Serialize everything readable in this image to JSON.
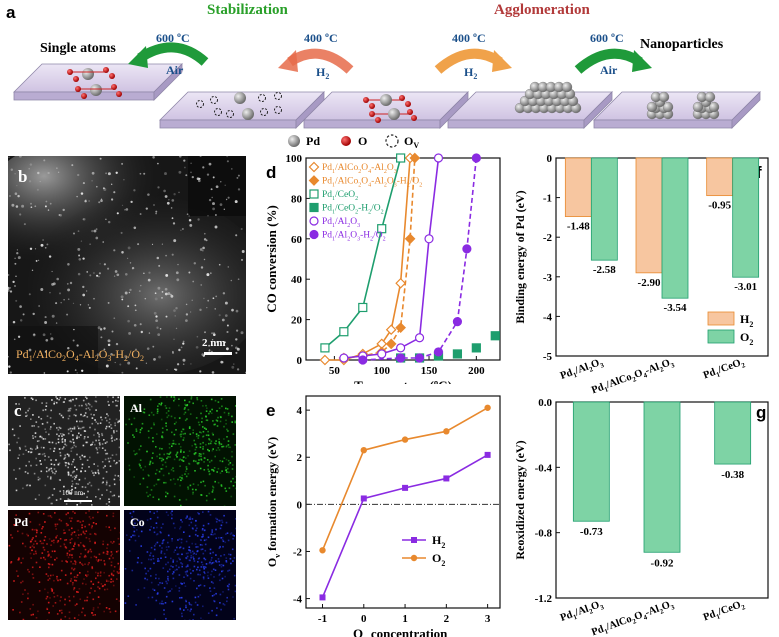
{
  "colors": {
    "orange": "#E8892E",
    "orange_fill": "#F7C6A0",
    "green": "#1E9E6E",
    "green_fill": "#7ED3A5",
    "purple": "#8A2BE2",
    "red_arrow": "#E66B4A",
    "green_arrow": "#1F9A3A",
    "stab_text": "#2AA02A",
    "aggl_text": "#B23A3A",
    "pd_sphere": "#8C8C8C",
    "o_sphere": "#CC1111"
  },
  "panel_a": {
    "label": "a",
    "stabilization": "Stabilization",
    "agglomeration": "Agglomeration",
    "single_atoms": "Single atoms",
    "nanoparticles": "Nanoparticles",
    "step1_temp": "600 ºC",
    "step1_gas": "Air",
    "step2_temp": "400 ºC",
    "step2_gas": "H",
    "step3_temp": "400 ºC",
    "step3_gas": "H",
    "step4_temp": "600 ºC",
    "step4_gas": "Air",
    "sub2": "2",
    "legend_pd": "Pd",
    "legend_o": "O",
    "legend_ov": "O",
    "legend_ov_sub": "V"
  },
  "panel_b": {
    "label": "b",
    "scale": "2 nm",
    "caption_pd": "Pd",
    "caption_1": "1",
    "caption_rest": "/AlCo",
    "caption_2a": "2",
    "caption_o": "O",
    "caption_4": "4",
    "caption_al": "-Al",
    "caption_2b": "2",
    "caption_o2": "O",
    "caption_3": "3",
    "caption_h": "-H",
    "caption_2c": "2",
    "caption_slash": "/O",
    "caption_2d": "2"
  },
  "panel_c": {
    "label": "c",
    "al": "Al",
    "pd": "Pd",
    "co": "Co",
    "scale": "100 nm"
  },
  "chart_data": [
    {
      "panel": "d",
      "type": "line",
      "xlabel": "Temperature (ºC)",
      "ylabel": "CO conversion (%)",
      "xlim": [
        20,
        225
      ],
      "ylim": [
        0,
        100
      ],
      "xticks": [
        50,
        100,
        150,
        200
      ],
      "yticks": [
        0,
        20,
        40,
        60,
        80,
        100
      ],
      "legend": [
        "Pd1/AlCo2O4-Al2O3",
        "Pd1/AlCo2O4-Al2O3-H2/O2",
        "Pd1/CeO2",
        "Pd1/CeO2-H2/O2",
        "Pd1/Al2O3",
        "Pd1/Al2O3-H2/O2"
      ],
      "series": [
        {
          "name": "Pd1/AlCo2O4-Al2O3",
          "color": "#E8892E",
          "marker": "diamond-open",
          "dash": false,
          "x": [
            40,
            60,
            80,
            100,
            110,
            120,
            130
          ],
          "y": [
            0,
            0,
            3,
            8,
            15,
            38,
            100
          ]
        },
        {
          "name": "Pd1/AlCo2O4-Al2O3-H2/O2",
          "color": "#E8892E",
          "marker": "diamond-filled",
          "dash": true,
          "x": [
            60,
            80,
            100,
            110,
            120,
            130,
            135
          ],
          "y": [
            1,
            2,
            4,
            8,
            16,
            60,
            100
          ]
        },
        {
          "name": "Pd1/CeO2",
          "color": "#1E9E6E",
          "marker": "square-open",
          "dash": false,
          "x": [
            40,
            60,
            80,
            100,
            120
          ],
          "y": [
            6,
            14,
            26,
            65,
            100
          ]
        },
        {
          "name": "Pd1/CeO2-H2/O2",
          "color": "#1E9E6E",
          "marker": "square-filled",
          "dash": false,
          "x": [
            120,
            140,
            160,
            180,
            200,
            220
          ],
          "y": [
            1,
            1,
            2,
            3,
            6,
            12
          ]
        },
        {
          "name": "Pd1/Al2O3",
          "color": "#8A2BE2",
          "marker": "circle-open",
          "dash": false,
          "x": [
            60,
            80,
            100,
            120,
            140,
            150,
            160
          ],
          "y": [
            1,
            2,
            3,
            6,
            11,
            60,
            100
          ]
        },
        {
          "name": "Pd1/Al2O3-H2/O2",
          "color": "#8A2BE2",
          "marker": "circle-filled",
          "dash": true,
          "x": [
            80,
            120,
            140,
            160,
            180,
            190,
            200
          ],
          "y": [
            0,
            1,
            1,
            4,
            19,
            55,
            100
          ]
        }
      ]
    },
    {
      "panel": "e",
      "type": "line",
      "xlabel": "Ov concentration",
      "ylabel": "Ov formation energy (eV)",
      "xlim": [
        -1.4,
        3.3
      ],
      "ylim": [
        -4.4,
        4.6
      ],
      "xticks": [
        -1,
        0,
        1,
        2,
        3
      ],
      "yticks": [
        -4,
        -2,
        0,
        2,
        4
      ],
      "reference_line_y": 0,
      "series": [
        {
          "name": "H2",
          "color": "#8A2BE2",
          "marker": "square",
          "x": [
            -1,
            0,
            1,
            2,
            3
          ],
          "y": [
            -3.95,
            0.25,
            0.7,
            1.1,
            2.1
          ]
        },
        {
          "name": "O2",
          "color": "#E8892E",
          "marker": "circle",
          "x": [
            -1,
            0,
            1,
            2,
            3
          ],
          "y": [
            -1.95,
            2.3,
            2.75,
            3.1,
            4.1
          ]
        }
      ]
    },
    {
      "panel": "f",
      "type": "bar",
      "ylabel": "Binding energy of Pd (eV)",
      "ylim": [
        -5,
        0
      ],
      "yticks": [
        0,
        -1,
        -2,
        -3,
        -4,
        -5
      ],
      "categories": [
        "Pd1/Al2O3",
        "Pd1/AlCo2O4-Al2O3",
        "Pd1/CeO2"
      ],
      "series": [
        {
          "name": "H2",
          "color": "#F7C6A0",
          "values": [
            -1.48,
            -2.9,
            -0.95
          ]
        },
        {
          "name": "O2",
          "color": "#7ED3A5",
          "values": [
            -2.58,
            -3.54,
            -3.01
          ]
        }
      ],
      "labels": {
        "H2": [
          "-1.48",
          "-2.90",
          "-0.95"
        ],
        "O2": [
          "-2.58",
          "-3.54",
          "-3.01"
        ]
      }
    },
    {
      "panel": "g",
      "type": "bar",
      "ylabel": "Reoxidized energy (eV)",
      "ylim": [
        -1.2,
        0
      ],
      "yticks": [
        0.0,
        -0.4,
        -0.8,
        -1.2
      ],
      "ytick_labels": [
        "0.0",
        "-0.4",
        "-0.8",
        "-1.2"
      ],
      "categories": [
        "Pd1/Al2O3",
        "Pd1/AlCo2O4-Al2O3",
        "Pd1/CeO2"
      ],
      "series": [
        {
          "name": "",
          "color": "#7ED3A5",
          "values": [
            -0.73,
            -0.92,
            -0.38
          ]
        }
      ],
      "labels": [
        "-0.73",
        "-0.92",
        "-0.38"
      ]
    }
  ],
  "panel_labels": {
    "d": "d",
    "e": "e",
    "f": "f",
    "g": "g"
  },
  "legend_d_parts": [
    [
      "Pd",
      "1",
      "/AlCo",
      "2",
      "O",
      "4",
      "-Al",
      "2",
      "O",
      "3",
      "",
      ""
    ],
    [
      "Pd",
      "1",
      "/AlCo",
      "2",
      "O",
      "4",
      "-Al",
      "2",
      "O",
      "3",
      "-H",
      "2",
      "/O",
      "2"
    ],
    [
      "Pd",
      "1",
      "/CeO",
      "2"
    ],
    [
      "Pd",
      "1",
      "/CeO",
      "2",
      "-H",
      "2",
      "/O",
      "2"
    ],
    [
      "Pd",
      "1",
      "/Al",
      "2",
      "O",
      "3"
    ],
    [
      "Pd",
      "1",
      "/Al",
      "2",
      "O",
      "3",
      "-H",
      "2",
      "/O",
      "2"
    ]
  ],
  "legend_e": {
    "h2": "H",
    "o2": "O",
    "sub": "2"
  },
  "legend_f": {
    "h2": "H",
    "o2": "O",
    "sub": "2"
  },
  "xlab_e": {
    "o": "O",
    "v": "v",
    "rest": " concentration"
  },
  "ylab_e": {
    "o": "O",
    "v": "v",
    "rest": " formation energy (eV)"
  },
  "cat_labels": [
    [
      "Pd",
      "1",
      "/Al",
      "2",
      "O",
      "3"
    ],
    [
      "Pd",
      "1",
      "/AlCo",
      "2",
      "O",
      "4",
      "-Al",
      "2",
      "O",
      "3"
    ],
    [
      "Pd",
      "1",
      "/CeO",
      "2"
    ]
  ]
}
